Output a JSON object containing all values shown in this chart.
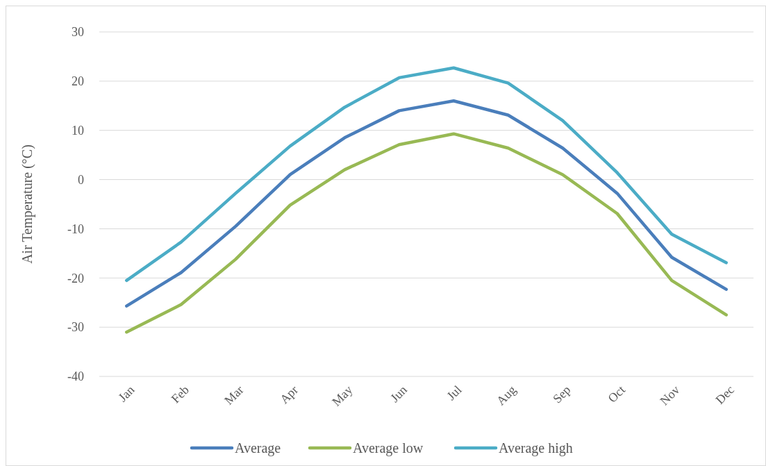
{
  "chart_data": {
    "type": "line",
    "ylabel": "Air Temperature (°C)",
    "categories": [
      "Jan",
      "Feb",
      "Mar",
      "Apr",
      "May",
      "Jun",
      "Jul",
      "Aug",
      "Sep",
      "Oct",
      "Nov",
      "Dec"
    ],
    "series": [
      {
        "name": "Average",
        "color": "#4a7ebb",
        "values": [
          -25.7,
          -18.9,
          -9.5,
          1.0,
          8.5,
          14.0,
          16.0,
          13.1,
          6.4,
          -2.8,
          -15.8,
          -22.3
        ]
      },
      {
        "name": "Average low",
        "color": "#98b954",
        "values": [
          -31.0,
          -25.4,
          -16.2,
          -5.2,
          2.0,
          7.1,
          9.3,
          6.4,
          1.0,
          -6.9,
          -20.5,
          -27.5
        ]
      },
      {
        "name": "Average high",
        "color": "#4bacc6",
        "values": [
          -20.5,
          -12.7,
          -2.8,
          6.8,
          14.7,
          20.7,
          22.7,
          19.6,
          12.0,
          1.4,
          -11.1,
          -16.9
        ]
      }
    ],
    "ylim": [
      -40,
      30
    ],
    "yticks": [
      -40,
      -30,
      -20,
      -10,
      0,
      10,
      20,
      30
    ],
    "grid": "y",
    "legend": "bottom",
    "marker": "none",
    "line_style": "solid"
  }
}
